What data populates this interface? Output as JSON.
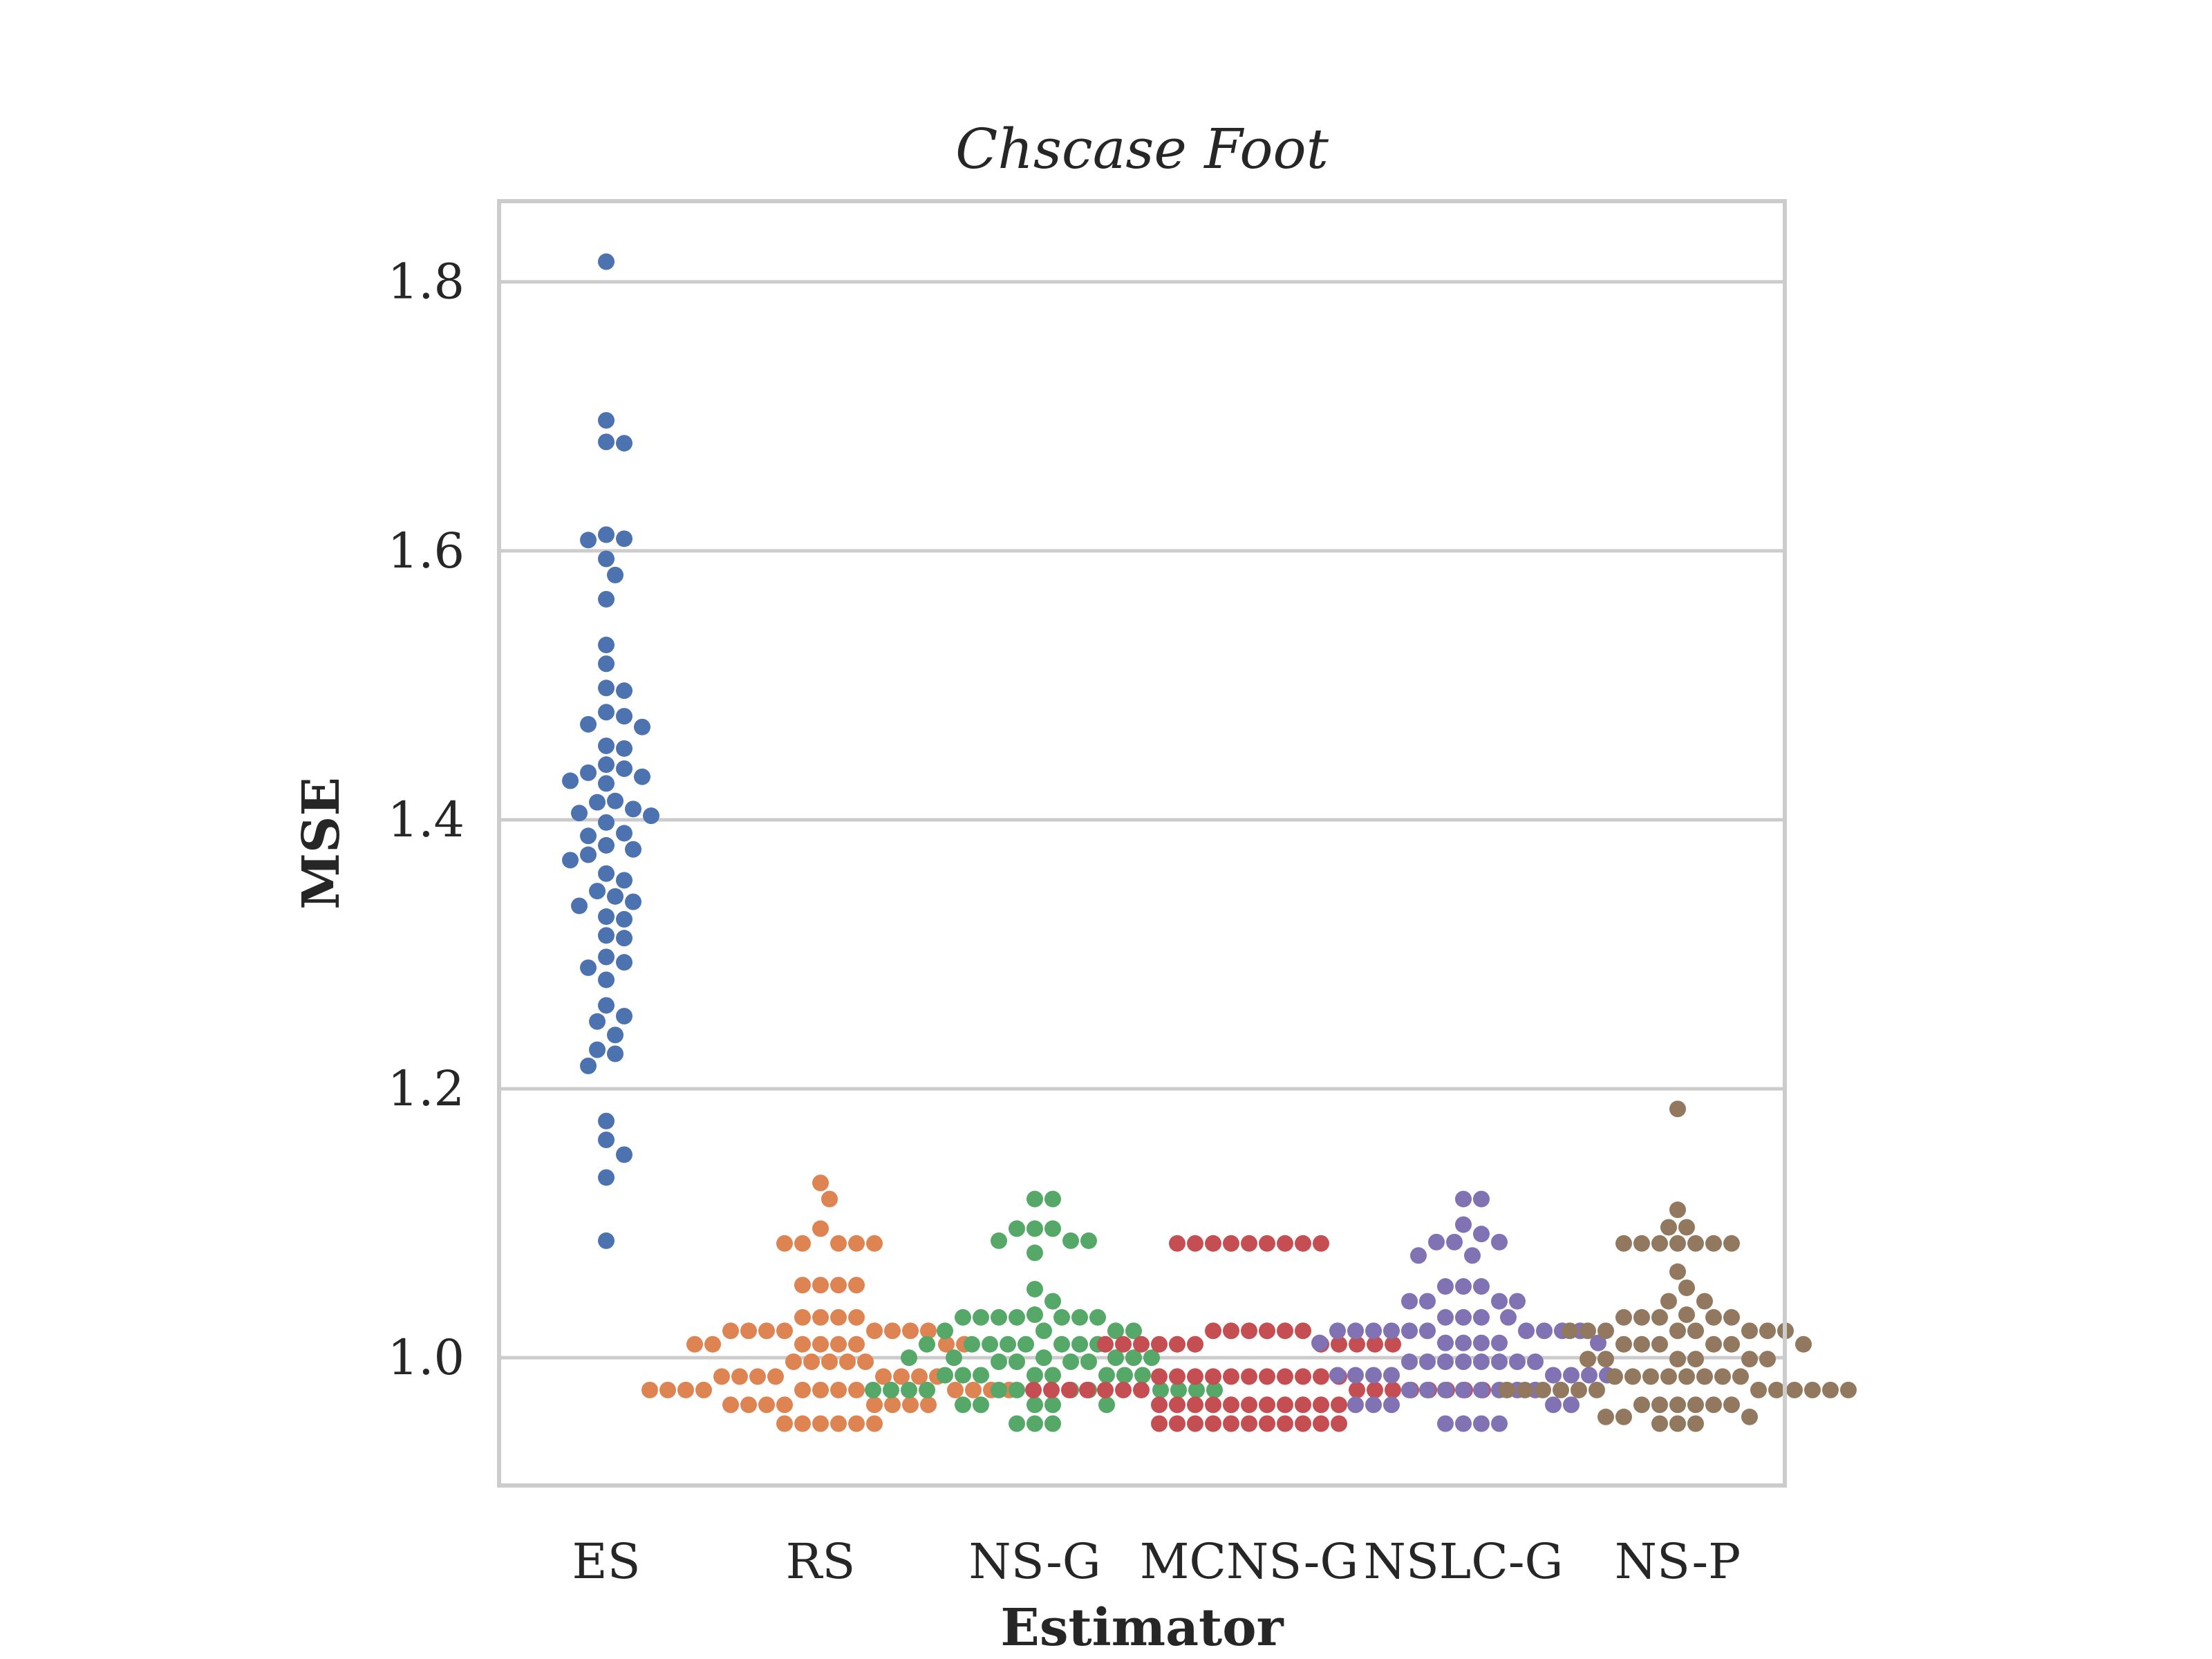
{
  "chart_data": {
    "type": "scatter",
    "subtype": "swarm",
    "title": "Chscase Foot",
    "xlabel": "Estimator",
    "ylabel": "MSE",
    "ylim": [
      0.905,
      1.86
    ],
    "yticks": [
      1.0,
      1.2,
      1.4,
      1.6,
      1.8
    ],
    "ytick_labels": [
      "1.0",
      "1.2",
      "1.4",
      "1.6",
      "1.8"
    ],
    "grid": "horizontal",
    "legend": "none",
    "categories": [
      "ES",
      "RS",
      "NS-G",
      "MCNS-G",
      "NSLC-G",
      "NS-P"
    ],
    "series": [
      {
        "name": "ES",
        "color": "#4c72b0",
        "values": [
          1.815,
          1.697,
          1.681,
          1.68,
          1.612,
          1.609,
          1.608,
          1.594,
          1.582,
          1.564,
          1.53,
          1.516,
          1.498,
          1.496,
          1.48,
          1.477,
          1.471,
          1.469,
          1.455,
          1.453,
          1.441,
          1.438,
          1.435,
          1.432,
          1.429,
          1.427,
          1.414,
          1.413,
          1.408,
          1.405,
          1.403,
          1.398,
          1.39,
          1.388,
          1.381,
          1.378,
          1.374,
          1.37,
          1.36,
          1.355,
          1.347,
          1.343,
          1.339,
          1.336,
          1.328,
          1.326,
          1.314,
          1.312,
          1.298,
          1.294,
          1.29,
          1.281,
          1.262,
          1.254,
          1.25,
          1.24,
          1.229,
          1.226,
          1.217,
          1.176,
          1.162,
          1.151,
          1.134,
          1.087
        ]
      },
      {
        "name": "RS",
        "color": "#dd8452",
        "values": [
          1.13,
          1.118,
          1.096,
          1.085,
          1.085,
          1.085,
          1.085,
          1.085,
          1.054,
          1.054,
          1.054,
          1.054,
          1.03,
          1.03,
          1.03,
          1.03,
          1.02,
          1.02,
          1.02,
          1.02,
          1.02,
          1.02,
          1.02,
          1.02,
          1.01,
          1.01,
          1.01,
          1.01,
          1.01,
          1.01,
          1.01,
          1.01,
          0.997,
          0.997,
          0.997,
          0.997,
          0.997,
          0.986,
          0.986,
          0.986,
          0.986,
          0.986,
          0.986,
          0.986,
          0.986,
          0.976,
          0.976,
          0.976,
          0.976,
          0.976,
          0.976,
          0.976,
          0.976,
          0.976,
          0.976,
          0.976,
          0.976,
          0.965,
          0.965,
          0.965,
          0.965,
          0.965,
          0.965,
          0.965,
          0.965,
          0.951,
          0.951,
          0.951,
          0.951,
          0.951,
          0.951
        ]
      },
      {
        "name": "NS-G",
        "color": "#55a868",
        "values": [
          1.118,
          1.118,
          1.096,
          1.096,
          1.096,
          1.087,
          1.087,
          1.087,
          1.078,
          1.051,
          1.042,
          1.032,
          1.03,
          1.03,
          1.03,
          1.03,
          1.03,
          1.03,
          1.03,
          1.02,
          1.02,
          1.02,
          1.02,
          1.01,
          1.01,
          1.01,
          1.01,
          1.01,
          1.01,
          1.01,
          1.01,
          1.0,
          1.0,
          1.0,
          1.0,
          1.0,
          1.0,
          0.997,
          0.997,
          0.997,
          0.997,
          0.987,
          0.987,
          0.987,
          0.987,
          0.987,
          0.987,
          0.987,
          0.987,
          0.976,
          0.976,
          0.976,
          0.976,
          0.976,
          0.976,
          0.976,
          0.976,
          0.976,
          0.976,
          0.976,
          0.976,
          0.965,
          0.965,
          0.965,
          0.965,
          0.965,
          0.951,
          0.951,
          0.951
        ]
      },
      {
        "name": "MCNS-G",
        "color": "#c44e52",
        "values": [
          1.085,
          1.085,
          1.085,
          1.085,
          1.085,
          1.085,
          1.085,
          1.085,
          1.085,
          1.02,
          1.02,
          1.02,
          1.02,
          1.02,
          1.02,
          1.01,
          1.01,
          1.01,
          1.01,
          1.01,
          1.01,
          1.01,
          1.01,
          1.01,
          1.01,
          1.01,
          0.986,
          0.986,
          0.986,
          0.986,
          0.986,
          0.986,
          0.986,
          0.986,
          0.986,
          0.986,
          0.986,
          0.976,
          0.976,
          0.976,
          0.976,
          0.976,
          0.976,
          0.976,
          0.976,
          0.976,
          0.976,
          0.976,
          0.976,
          0.976,
          0.976,
          0.976,
          0.965,
          0.965,
          0.965,
          0.965,
          0.965,
          0.965,
          0.965,
          0.965,
          0.965,
          0.965,
          0.965,
          0.951,
          0.951,
          0.951,
          0.951,
          0.951,
          0.951,
          0.951,
          0.951,
          0.951,
          0.951,
          0.951
        ]
      },
      {
        "name": "NSLC-G",
        "color": "#8172b3",
        "values": [
          1.118,
          1.118,
          1.099,
          1.092,
          1.086,
          1.086,
          1.086,
          1.076,
          1.076,
          1.053,
          1.053,
          1.053,
          1.042,
          1.042,
          1.042,
          1.042,
          1.03,
          1.03,
          1.03,
          1.03,
          1.02,
          1.02,
          1.02,
          1.02,
          1.02,
          1.02,
          1.02,
          1.02,
          1.02,
          1.02,
          1.011,
          1.011,
          1.011,
          1.011,
          1.011,
          1.011,
          0.997,
          0.997,
          0.997,
          0.997,
          0.997,
          0.997,
          0.997,
          0.997,
          0.987,
          0.987,
          0.987,
          0.987,
          0.987,
          0.987,
          0.987,
          0.987,
          0.976,
          0.976,
          0.976,
          0.976,
          0.976,
          0.976,
          0.976,
          0.976,
          0.965,
          0.965,
          0.965,
          0.965,
          0.965,
          0.951,
          0.951,
          0.951,
          0.951
        ]
      },
      {
        "name": "NS-P",
        "color": "#937860",
        "values": [
          1.185,
          1.11,
          1.097,
          1.097,
          1.085,
          1.085,
          1.085,
          1.085,
          1.085,
          1.085,
          1.085,
          1.064,
          1.052,
          1.042,
          1.042,
          1.032,
          1.03,
          1.03,
          1.03,
          1.03,
          1.03,
          1.02,
          1.02,
          1.02,
          1.02,
          1.02,
          1.02,
          1.02,
          1.02,
          1.01,
          1.01,
          1.01,
          1.01,
          1.01,
          1.01,
          0.999,
          0.999,
          0.999,
          0.999,
          0.999,
          0.999,
          0.986,
          0.986,
          0.986,
          0.986,
          0.986,
          0.986,
          0.986,
          0.986,
          0.976,
          0.976,
          0.976,
          0.976,
          0.976,
          0.976,
          0.976,
          0.976,
          0.976,
          0.976,
          0.976,
          0.976,
          0.965,
          0.965,
          0.965,
          0.965,
          0.965,
          0.965,
          0.956,
          0.956,
          0.956,
          0.951,
          0.951,
          0.951
        ]
      }
    ]
  }
}
